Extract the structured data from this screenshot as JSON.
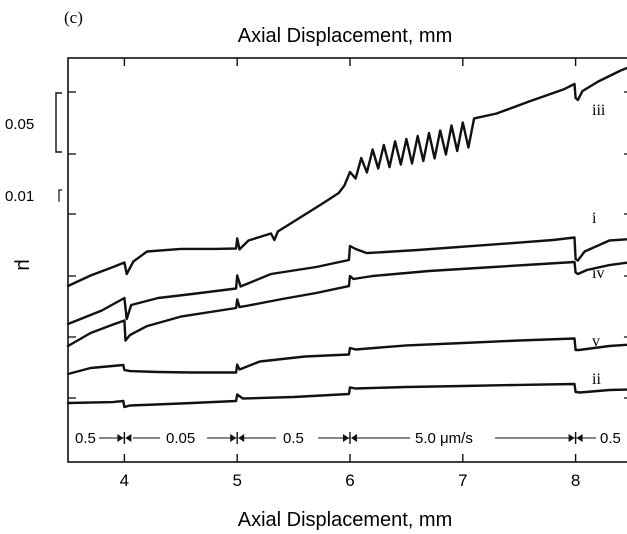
{
  "chart_data": {
    "type": "line",
    "panel_label": "(c)",
    "xlabel": "Axial Displacement, mm",
    "x2label": "Axial Displacement, mm",
    "ylabel": "μ",
    "xlim": [
      3.5,
      8.5
    ],
    "xticks": [
      4,
      5,
      6,
      7,
      8
    ],
    "scale_bars": [
      {
        "label": "0.05",
        "value": 0.05
      },
      {
        "label": "0.01",
        "value": 0.01
      }
    ],
    "velocity_steps": {
      "labels": [
        "0.5",
        "0.05",
        "0.5",
        "5.0 μm/s",
        "0.5"
      ],
      "boundaries": [
        4,
        5,
        6,
        8
      ]
    },
    "series": [
      {
        "name": "iii",
        "x": [
          3.5,
          3.7,
          3.9,
          4.0,
          4.02,
          4.08,
          4.2,
          4.5,
          4.8,
          4.99,
          5.0,
          5.02,
          5.1,
          5.3,
          5.33,
          5.36,
          5.5,
          5.7,
          5.8,
          5.9,
          5.95,
          6.0,
          6.05,
          6.1,
          6.15,
          6.2,
          6.25,
          6.3,
          6.35,
          6.4,
          6.45,
          6.5,
          6.55,
          6.6,
          6.65,
          6.7,
          6.75,
          6.8,
          6.85,
          6.9,
          6.95,
          7.0,
          7.05,
          7.1,
          7.3,
          7.6,
          7.9,
          7.99,
          8.0,
          8.02,
          8.06,
          8.2,
          8.4,
          8.5
        ],
        "y": [
          0.0,
          0.0089,
          0.0161,
          0.0199,
          0.0102,
          0.0208,
          0.0292,
          0.0314,
          0.0314,
          0.0318,
          0.0403,
          0.031,
          0.0386,
          0.0445,
          0.039,
          0.0462,
          0.0546,
          0.0665,
          0.0725,
          0.0788,
          0.0852,
          0.0966,
          0.0911,
          0.1085,
          0.0962,
          0.1157,
          0.0996,
          0.1195,
          0.1008,
          0.1225,
          0.103,
          0.1246,
          0.1038,
          0.1271,
          0.1059,
          0.1297,
          0.1081,
          0.1318,
          0.1114,
          0.136,
          0.1144,
          0.1386,
          0.1174,
          0.142,
          0.1462,
          0.1568,
          0.1669,
          0.1712,
          0.1593,
          0.1576,
          0.1652,
          0.1733,
          0.1826,
          0.1864
        ]
      },
      {
        "name": "i",
        "x": [
          3.5,
          3.8,
          4.0,
          4.02,
          4.06,
          4.3,
          4.6,
          4.99,
          5.0,
          5.03,
          5.3,
          5.7,
          5.99,
          6.0,
          6.05,
          6.15,
          6.6,
          7.2,
          7.8,
          7.99,
          8.0,
          8.02,
          8.08,
          8.3,
          8.5
        ],
        "y": [
          0.0,
          0.0114,
          0.022,
          0.0042,
          0.0161,
          0.022,
          0.0254,
          0.0301,
          0.0411,
          0.0318,
          0.0424,
          0.0483,
          0.0542,
          0.0661,
          0.0636,
          0.0601,
          0.0627,
          0.0669,
          0.0712,
          0.0733,
          0.0551,
          0.0538,
          0.0614,
          0.0708,
          0.072
        ]
      },
      {
        "name": "iv",
        "x": [
          3.5,
          3.7,
          3.9,
          4.0,
          4.01,
          4.05,
          4.2,
          4.5,
          4.99,
          5.0,
          5.02,
          5.1,
          5.4,
          5.7,
          5.99,
          6.0,
          6.03,
          6.2,
          6.7,
          7.2,
          7.7,
          7.99,
          8.0,
          8.02,
          8.1,
          8.3,
          8.5
        ],
        "y": [
          0.0,
          0.011,
          0.0182,
          0.0216,
          0.0047,
          0.0093,
          0.0169,
          0.0249,
          0.0322,
          0.0394,
          0.033,
          0.0343,
          0.0398,
          0.0449,
          0.0508,
          0.0593,
          0.0568,
          0.0593,
          0.0636,
          0.0665,
          0.0695,
          0.0712,
          0.0623,
          0.061,
          0.0644,
          0.0686,
          0.0712
        ]
      },
      {
        "name": "v",
        "x": [
          3.5,
          3.7,
          3.99,
          4.0,
          4.05,
          4.3,
          4.6,
          4.99,
          5.0,
          5.02,
          5.2,
          5.6,
          5.99,
          6.0,
          6.05,
          6.5,
          7.0,
          7.5,
          7.99,
          8.0,
          8.03,
          8.3,
          8.5
        ],
        "y": [
          0.0,
          0.0051,
          0.0076,
          0.0034,
          0.0025,
          0.0017,
          0.0013,
          0.0013,
          0.008,
          0.0038,
          0.0106,
          0.0148,
          0.0165,
          0.022,
          0.0208,
          0.0242,
          0.0263,
          0.0284,
          0.0301,
          0.0203,
          0.0203,
          0.0237,
          0.025
        ]
      },
      {
        "name": "ii",
        "x": [
          3.5,
          3.9,
          3.99,
          4.0,
          4.05,
          4.5,
          4.99,
          5.0,
          5.05,
          5.5,
          5.99,
          6.0,
          6.05,
          6.5,
          7.0,
          7.5,
          7.99,
          8.0,
          8.04,
          8.3,
          8.5
        ],
        "y": [
          0.0,
          0.0008,
          0.0017,
          -0.0034,
          -0.0021,
          -0.0004,
          0.0017,
          0.0072,
          0.0038,
          0.0051,
          0.0076,
          0.0132,
          0.0123,
          0.0136,
          0.0144,
          0.0153,
          0.0161,
          0.0093,
          0.0089,
          0.011,
          0.0114
        ]
      }
    ]
  }
}
